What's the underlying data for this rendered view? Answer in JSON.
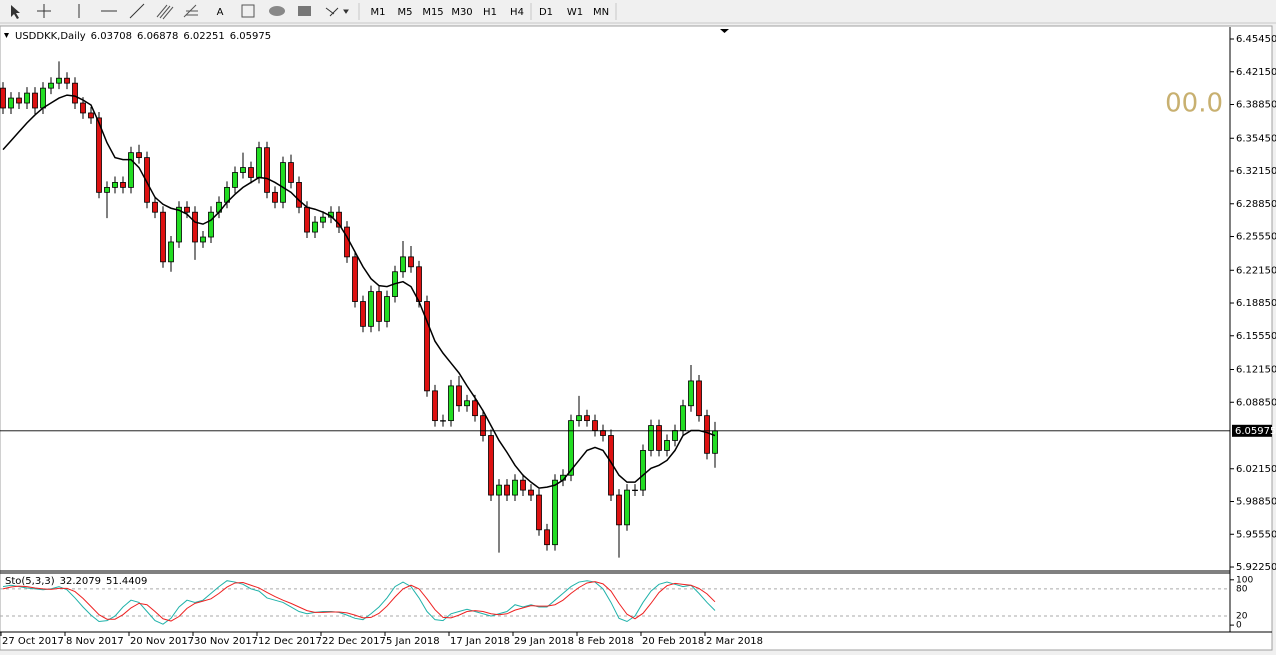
{
  "toolbar": {
    "timeframes": [
      "M1",
      "M5",
      "M15",
      "M30",
      "H1",
      "H4",
      "D1",
      "W1",
      "MN"
    ]
  },
  "chart_data": {
    "type": "candlestick",
    "title": "USDDKK,Daily",
    "categories": [
      "27 Oct 2017",
      null,
      null,
      null,
      null,
      null,
      null,
      null,
      "8 Nov 2017",
      null,
      null,
      null,
      null,
      null,
      null,
      null,
      "20 Nov 2017",
      null,
      null,
      null,
      null,
      null,
      null,
      null,
      "30 Nov 2017",
      null,
      null,
      null,
      null,
      null,
      null,
      null,
      "12 Dec 2017",
      null,
      null,
      null,
      null,
      null,
      null,
      null,
      "22 Dec 2017",
      null,
      null,
      null,
      null,
      null,
      null,
      null,
      "5 Jan 2018",
      null,
      null,
      null,
      null,
      null,
      null,
      null,
      "17 Jan 2018",
      null,
      null,
      null,
      null,
      null,
      null,
      null,
      "29 Jan 2018",
      null,
      null,
      null,
      null,
      null,
      null,
      null,
      "8 Feb 2018",
      null,
      null,
      null,
      null,
      null,
      null,
      null,
      "20 Feb 2018",
      null,
      null,
      null,
      null,
      null,
      null,
      null,
      "2 Mar 2018",
      null
    ],
    "open": [
      6.405,
      6.385,
      6.395,
      6.39,
      6.4,
      6.385,
      6.405,
      6.41,
      6.415,
      6.41,
      6.39,
      6.38,
      6.375,
      6.3,
      6.305,
      6.31,
      6.305,
      6.34,
      6.335,
      6.29,
      6.28,
      6.23,
      6.25,
      6.285,
      6.28,
      6.25,
      6.255,
      6.28,
      6.29,
      6.305,
      6.32,
      6.325,
      6.315,
      6.345,
      6.3,
      6.29,
      6.33,
      6.31,
      6.285,
      6.26,
      6.27,
      6.275,
      6.28,
      6.265,
      6.235,
      6.19,
      6.165,
      6.2,
      6.17,
      6.195,
      6.22,
      6.235,
      6.225,
      6.19,
      6.1,
      6.07,
      6.07,
      6.105,
      6.085,
      6.09,
      6.075,
      6.055,
      5.995,
      6.005,
      5.995,
      6.01,
      6.0,
      5.995,
      5.96,
      5.945,
      6.01,
      6.015,
      6.07,
      6.075,
      6.07,
      6.06,
      6.055,
      5.995,
      5.965,
      6.0,
      6.0,
      6.04,
      6.065,
      6.04,
      6.05,
      6.06,
      6.085,
      6.11,
      6.075,
      6.03708
    ],
    "high": [
      6.411,
      6.401,
      6.401,
      6.406,
      6.406,
      6.411,
      6.416,
      6.432,
      6.421,
      6.416,
      6.396,
      6.386,
      6.381,
      6.311,
      6.316,
      6.316,
      6.346,
      6.348,
      6.341,
      6.296,
      6.286,
      6.256,
      6.291,
      6.291,
      6.286,
      6.261,
      6.286,
      6.296,
      6.311,
      6.326,
      6.34,
      6.331,
      6.351,
      6.351,
      6.306,
      6.336,
      6.338,
      6.316,
      6.291,
      6.276,
      6.281,
      6.286,
      6.286,
      6.271,
      6.241,
      6.196,
      6.206,
      6.206,
      6.201,
      6.226,
      6.251,
      6.246,
      6.231,
      6.196,
      6.106,
      6.076,
      6.111,
      6.115,
      6.096,
      6.096,
      6.081,
      6.061,
      6.011,
      6.011,
      6.016,
      6.016,
      6.006,
      6.001,
      5.966,
      6.016,
      6.021,
      6.076,
      6.095,
      6.081,
      6.076,
      6.066,
      6.061,
      6.001,
      6.006,
      6.006,
      6.046,
      6.071,
      6.071,
      6.056,
      6.066,
      6.091,
      6.126,
      6.116,
      6.081,
      6.06878
    ],
    "low": [
      6.379,
      6.379,
      6.384,
      6.384,
      6.379,
      6.379,
      6.399,
      6.404,
      6.404,
      6.384,
      6.374,
      6.369,
      6.294,
      6.274,
      6.299,
      6.299,
      6.299,
      6.329,
      6.284,
      6.274,
      6.224,
      6.22,
      6.244,
      6.274,
      6.232,
      6.244,
      6.249,
      6.274,
      6.284,
      6.299,
      6.314,
      6.309,
      6.309,
      6.294,
      6.284,
      6.284,
      6.304,
      6.279,
      6.254,
      6.254,
      6.264,
      6.269,
      6.259,
      6.229,
      6.184,
      6.159,
      6.159,
      6.16,
      6.164,
      6.189,
      6.214,
      6.219,
      6.184,
      6.094,
      6.064,
      6.064,
      6.064,
      6.079,
      6.079,
      6.069,
      6.049,
      5.989,
      5.937,
      5.989,
      5.989,
      5.994,
      5.989,
      5.954,
      5.939,
      5.939,
      6.004,
      6.009,
      6.064,
      6.064,
      6.054,
      6.049,
      5.989,
      5.932,
      5.959,
      5.994,
      5.994,
      6.034,
      6.034,
      6.034,
      6.044,
      6.054,
      6.079,
      6.069,
      6.031,
      6.02251
    ],
    "close": [
      6.385,
      6.395,
      6.39,
      6.4,
      6.385,
      6.405,
      6.41,
      6.415,
      6.41,
      6.39,
      6.38,
      6.375,
      6.3,
      6.305,
      6.31,
      6.305,
      6.34,
      6.335,
      6.29,
      6.28,
      6.23,
      6.25,
      6.285,
      6.28,
      6.25,
      6.255,
      6.28,
      6.29,
      6.305,
      6.32,
      6.325,
      6.315,
      6.345,
      6.3,
      6.29,
      6.33,
      6.31,
      6.285,
      6.26,
      6.27,
      6.275,
      6.28,
      6.265,
      6.235,
      6.19,
      6.165,
      6.2,
      6.17,
      6.195,
      6.22,
      6.235,
      6.225,
      6.19,
      6.1,
      6.07,
      6.07,
      6.105,
      6.085,
      6.09,
      6.075,
      6.055,
      5.995,
      6.005,
      5.995,
      6.01,
      6.0,
      5.995,
      5.96,
      5.945,
      6.01,
      6.015,
      6.07,
      6.075,
      6.07,
      6.06,
      6.055,
      5.995,
      5.965,
      6.0,
      6.0,
      6.04,
      6.065,
      6.04,
      6.05,
      6.06,
      6.085,
      6.11,
      6.075,
      6.03708,
      6.05975
    ],
    "ma": [
      6.343,
      6.352,
      6.361,
      6.37,
      6.378,
      6.385,
      6.39,
      6.395,
      6.398,
      6.397,
      6.393,
      6.388,
      6.37,
      6.35,
      6.335,
      6.333,
      6.333,
      6.325,
      6.31,
      6.295,
      6.288,
      6.284,
      6.282,
      6.278,
      6.27,
      6.268,
      6.272,
      6.28,
      6.29,
      6.298,
      6.305,
      6.31,
      6.315,
      6.314,
      6.31,
      6.305,
      6.3,
      6.292,
      6.285,
      6.283,
      6.28,
      6.276,
      6.268,
      6.255,
      6.24,
      6.225,
      6.213,
      6.206,
      6.205,
      6.208,
      6.21,
      6.205,
      6.19,
      6.17,
      6.15,
      6.138,
      6.128,
      6.118,
      6.105,
      6.093,
      6.08,
      6.065,
      6.05,
      6.038,
      6.025,
      6.015,
      6.008,
      6.002,
      6.003,
      6.005,
      6.01,
      6.02,
      6.03,
      6.04,
      6.043,
      6.04,
      6.028,
      6.015,
      6.008,
      6.008,
      6.015,
      6.022,
      6.025,
      6.03,
      6.04,
      6.055,
      6.06,
      6.06,
      6.058,
      6.055
    ],
    "colors": {
      "up": "#22dd22",
      "down": "#dd1111",
      "ma": "#000000"
    },
    "ylim": [
      5.9195,
      6.4666
    ],
    "yticks": [
      {
        "value": 6.4545,
        "label": "6.45450"
      },
      {
        "value": 6.4215,
        "label": "6.42150"
      },
      {
        "value": 6.3885,
        "label": "6.38850"
      },
      {
        "value": 6.3545,
        "label": "6.35450"
      },
      {
        "value": 6.3215,
        "label": "6.32150"
      },
      {
        "value": 6.2885,
        "label": "6.28850"
      },
      {
        "value": 6.2555,
        "label": "6.25550"
      },
      {
        "value": 6.2215,
        "label": "6.22150"
      },
      {
        "value": 6.1885,
        "label": "6.18850"
      },
      {
        "value": 6.1555,
        "label": "6.15550"
      },
      {
        "value": 6.1215,
        "label": "6.12150"
      },
      {
        "value": 6.0885,
        "label": "6.08850"
      },
      {
        "value": 6.0215,
        "label": "6.02150"
      },
      {
        "value": 5.9885,
        "label": "5.98850"
      },
      {
        "value": 5.9555,
        "label": "5.95550"
      },
      {
        "value": 5.9225,
        "label": "5.92250"
      }
    ],
    "annotation": "00.0",
    "indicator": {
      "title": "Sto(5,3,3)",
      "ylim": [
        -13,
        115
      ],
      "yticks": [
        100,
        80,
        20,
        0
      ],
      "series": [
        {
          "color": "#20b2aa",
          "values": [
            85,
            88,
            85,
            82,
            80,
            78,
            80,
            85,
            78,
            60,
            40,
            22,
            8,
            10,
            20,
            40,
            55,
            50,
            30,
            10,
            2,
            15,
            40,
            55,
            50,
            55,
            70,
            85,
            98,
            95,
            90,
            80,
            75,
            60,
            55,
            50,
            40,
            30,
            25,
            28,
            30,
            30,
            28,
            22,
            15,
            12,
            25,
            40,
            60,
            85,
            95,
            85,
            60,
            30,
            12,
            10,
            25,
            30,
            35,
            30,
            25,
            20,
            25,
            30,
            45,
            40,
            45,
            40,
            40,
            55,
            70,
            85,
            95,
            98,
            95,
            80,
            50,
            15,
            8,
            20,
            50,
            75,
            90,
            95,
            90,
            85,
            88,
            70,
            50,
            32.2079
          ]
        },
        {
          "color": "#ee2222",
          "values": [
            80,
            84,
            86,
            85,
            82,
            80,
            79,
            81,
            81,
            74,
            59,
            41,
            23,
            13,
            13,
            23,
            38,
            48,
            45,
            30,
            14,
            9,
            19,
            37,
            48,
            53,
            58,
            70,
            84,
            93,
            94,
            88,
            82,
            72,
            63,
            55,
            48,
            40,
            32,
            28,
            28,
            29,
            29,
            27,
            22,
            16,
            17,
            26,
            42,
            62,
            80,
            88,
            80,
            58,
            34,
            17,
            16,
            22,
            30,
            32,
            30,
            25,
            23,
            25,
            33,
            38,
            43,
            42,
            42,
            45,
            55,
            70,
            83,
            93,
            96,
            91,
            75,
            48,
            24,
            14,
            26,
            48,
            72,
            87,
            92,
            90,
            88,
            81,
            69,
            51.4409
          ]
        }
      ]
    }
  }
}
